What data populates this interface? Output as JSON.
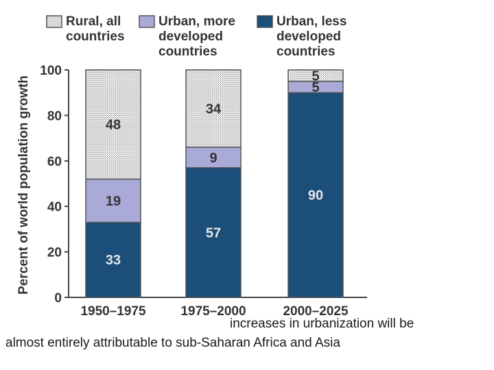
{
  "chart_data": {
    "type": "stacked-bar",
    "ylabel": "Percent of world population growth",
    "xlabel": "",
    "ylim": [
      0,
      100
    ],
    "yticks": [
      0,
      20,
      40,
      60,
      80,
      100
    ],
    "categories": [
      "1950–1975",
      "1975–2000",
      "2000–2025"
    ],
    "legend_position": "top",
    "series": [
      {
        "name": "Urban, less developed countries",
        "legend": [
          "Urban, less",
          "developed",
          "countries"
        ],
        "color": "#1c4e7a",
        "values": [
          33,
          57,
          90
        ]
      },
      {
        "name": "Urban, more developed countries",
        "legend": [
          "Urban, more",
          "developed",
          "countries"
        ],
        "color": "#a9aad8",
        "values": [
          19,
          9,
          5
        ]
      },
      {
        "name": "Rural, all countries",
        "legend": [
          "Rural, all",
          "countries"
        ],
        "color": "#e3e3e3",
        "values": [
          48,
          34,
          5
        ]
      }
    ]
  },
  "caption": {
    "line1": "increases in urbanization will be",
    "line2": "almost entirely attributable to sub-Saharan Africa and Asia"
  }
}
